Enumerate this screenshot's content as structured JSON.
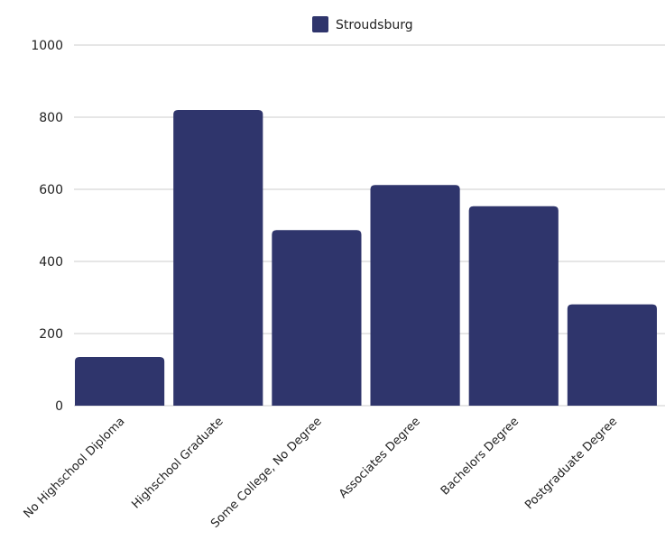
{
  "chart_data": {
    "type": "bar",
    "title": "",
    "xlabel": "",
    "ylabel": "",
    "categories": [
      "No Highschool Diploma",
      "Highschool Graduate",
      "Some College, No Degree",
      "Associates Degree",
      "Bachelors Degree",
      "Postgraduate Degree"
    ],
    "series": [
      {
        "name": "Stroudsburg",
        "color": "#2f356c",
        "values": [
          135,
          820,
          487,
          612,
          553,
          281
        ]
      }
    ],
    "ylim": [
      0,
      1000
    ],
    "yticks": [
      "0",
      "200",
      "400",
      "600",
      "800",
      "1000"
    ],
    "grid": true,
    "legend_position": "top-center"
  }
}
